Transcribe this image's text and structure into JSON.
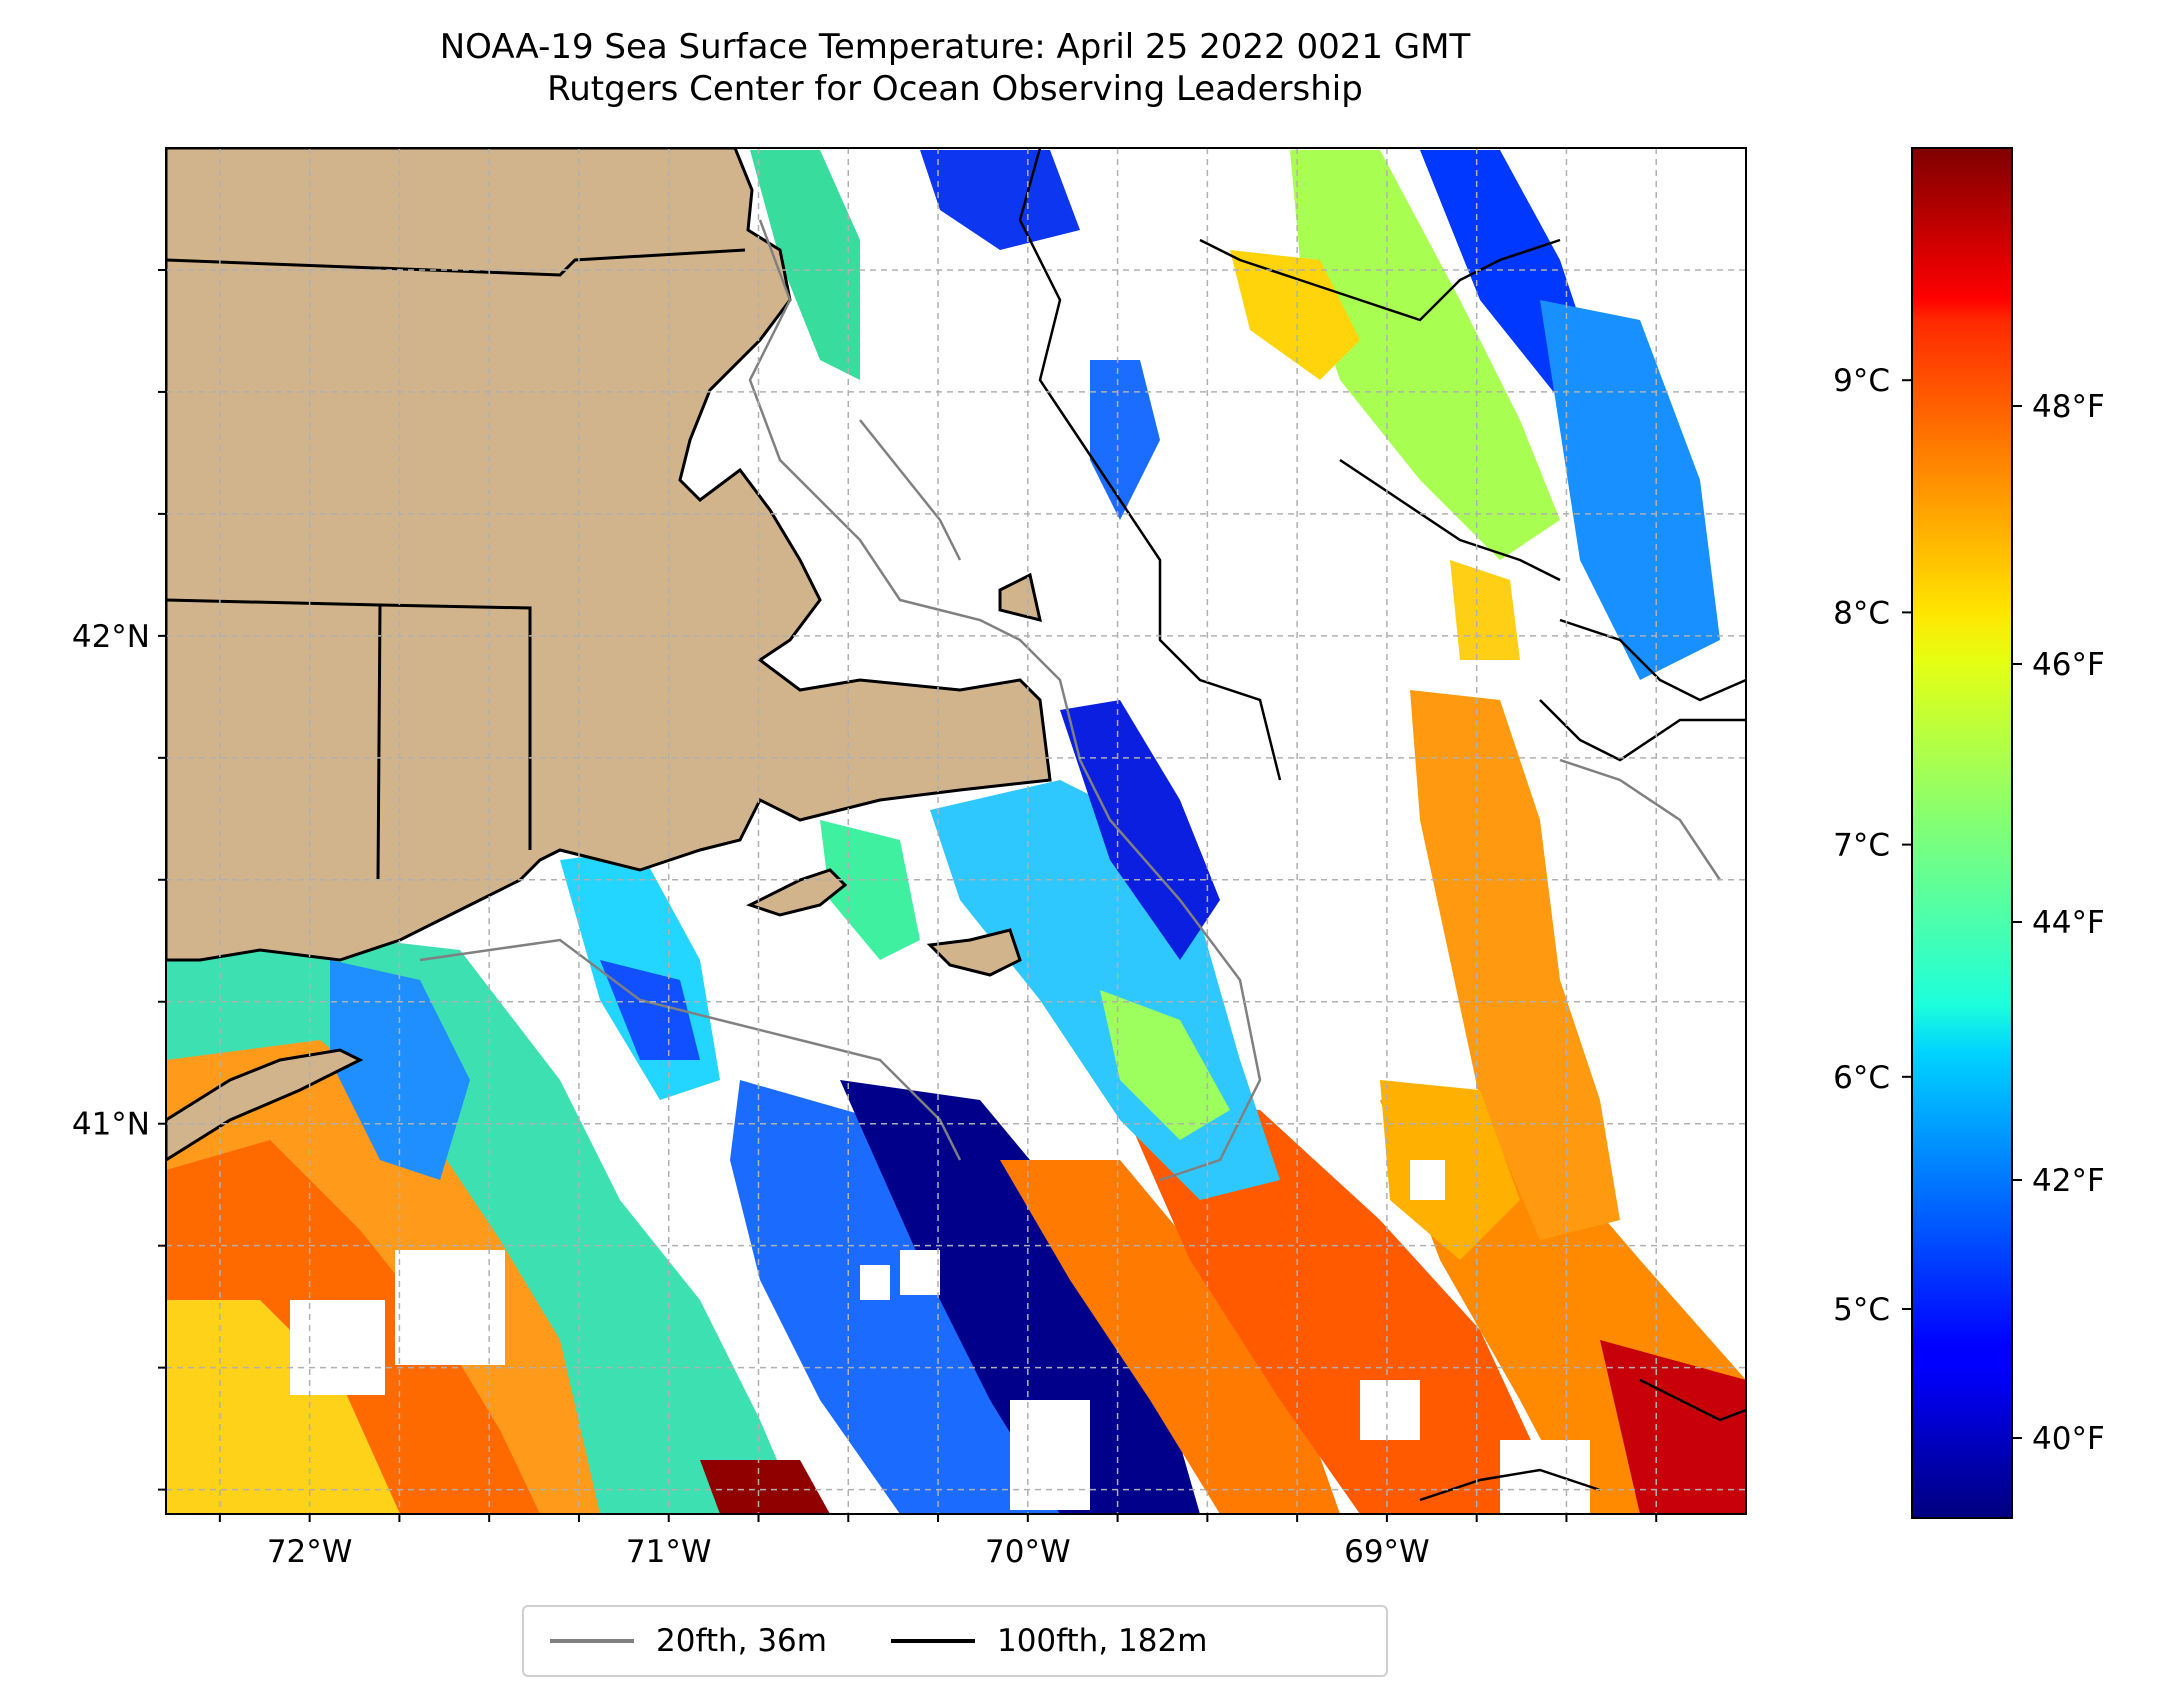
{
  "title": {
    "line1": "NOAA-19 Sea Surface Temperature: April 25 2022 0021 GMT",
    "line2": "Rutgers Center for Ocean Observing Leadership"
  },
  "map": {
    "lon_range": [
      -72.4,
      -68.0
    ],
    "lat_range": [
      40.2,
      43.0
    ],
    "land_color": "#d2b48c",
    "longitude_labels": [
      {
        "lon": -72,
        "text": "72°W"
      },
      {
        "lon": -71,
        "text": "71°W"
      },
      {
        "lon": -70,
        "text": "70°W"
      },
      {
        "lon": -69,
        "text": "69°W"
      }
    ],
    "latitude_labels": [
      {
        "lat": 42,
        "text": "42°N"
      },
      {
        "lat": 41,
        "text": "41°N"
      }
    ]
  },
  "colorbar": {
    "colormap": "jet",
    "celsius_range": [
      4.1,
      10.0
    ],
    "celsius_labels": [
      {
        "value": 9,
        "text": "9°C"
      },
      {
        "value": 8,
        "text": "8°C"
      },
      {
        "value": 7,
        "text": "7°C"
      },
      {
        "value": 6,
        "text": "6°C"
      },
      {
        "value": 5,
        "text": "5°C"
      }
    ],
    "fahrenheit_labels": [
      {
        "value": 48,
        "text": "48°F"
      },
      {
        "value": 46,
        "text": "46°F"
      },
      {
        "value": 44,
        "text": "44°F"
      },
      {
        "value": 42,
        "text": "42°F"
      },
      {
        "value": 40,
        "text": "40°F"
      }
    ]
  },
  "legend": {
    "items": [
      {
        "label": "20fth, 36m",
        "color": "#808080"
      },
      {
        "label": "100fth, 182m",
        "color": "#000000"
      }
    ]
  }
}
